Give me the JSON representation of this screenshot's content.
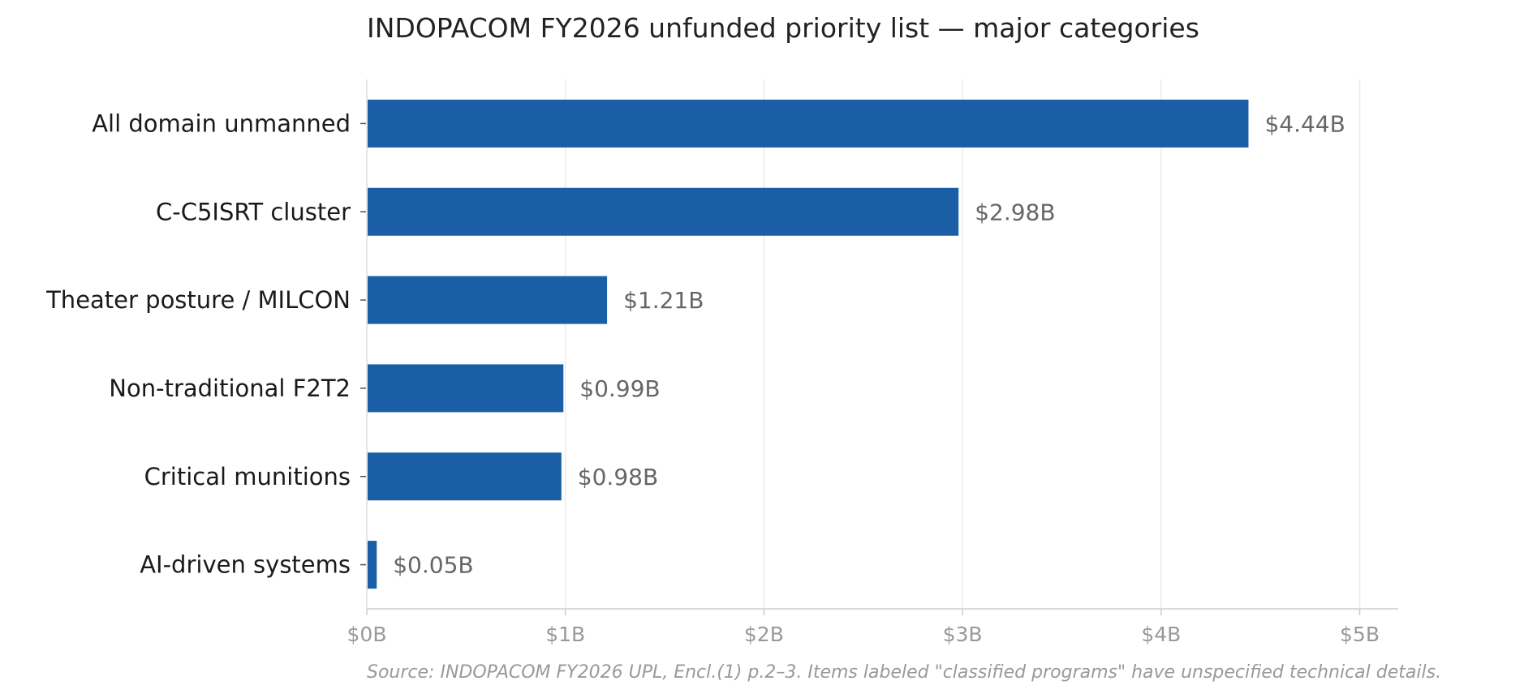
{
  "chart_data": {
    "type": "bar",
    "orientation": "horizontal",
    "title": "INDOPACOM FY2026 unfunded priority list — major categories",
    "categories": [
      "All domain unmanned",
      "C-C5ISRT cluster",
      "Theater posture / MILCON",
      "Non-traditional F2T2",
      "Critical munitions",
      "AI-driven systems"
    ],
    "values": [
      4.44,
      2.98,
      1.21,
      0.99,
      0.98,
      0.05
    ],
    "value_labels": [
      "$4.44B",
      "$2.98B",
      "$1.21B",
      "$0.99B",
      "$0.98B",
      "$0.05B"
    ],
    "xlim": [
      0,
      5.2
    ],
    "xticks": [
      0,
      1,
      2,
      3,
      4,
      5
    ],
    "xtick_labels": [
      "$0B",
      "$1B",
      "$2B",
      "$3B",
      "$4B",
      "$5B"
    ],
    "xlabel": "",
    "ylabel": "",
    "grid": "vertical",
    "bar_color": "#1a5fa6",
    "source_note": "Source: INDOPACOM FY2026 UPL, Encl.(1) p.2–3. Items labeled \"classified programs\" have unspecified technical details."
  }
}
